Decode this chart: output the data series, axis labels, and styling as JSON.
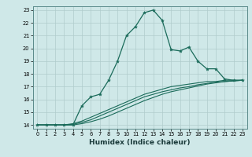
{
  "xlabel": "Humidex (Indice chaleur)",
  "ylabel": "",
  "bg_color": "#cfe8e8",
  "grid_color": "#b0cccc",
  "line_color": "#1a6b5a",
  "xlim": [
    -0.5,
    23.5
  ],
  "ylim": [
    13.7,
    23.3
  ],
  "xticks": [
    0,
    1,
    2,
    3,
    4,
    5,
    6,
    7,
    8,
    9,
    10,
    11,
    12,
    13,
    14,
    15,
    16,
    17,
    18,
    19,
    20,
    21,
    22,
    23
  ],
  "yticks": [
    14,
    15,
    16,
    17,
    18,
    19,
    20,
    21,
    22,
    23
  ],
  "series1_x": [
    0,
    1,
    2,
    3,
    4,
    5,
    6,
    7,
    8,
    9,
    10,
    11,
    12,
    13,
    14,
    15,
    16,
    17,
    18,
    19,
    20,
    21,
    22,
    23
  ],
  "series1_y": [
    14.0,
    14.0,
    14.0,
    14.0,
    14.0,
    15.5,
    16.2,
    16.4,
    17.5,
    19.0,
    21.0,
    21.7,
    22.8,
    23.0,
    22.2,
    19.9,
    19.8,
    20.1,
    19.0,
    18.4,
    18.4,
    17.6,
    17.5,
    17.5
  ],
  "series2_x": [
    0,
    1,
    2,
    3,
    4,
    5,
    6,
    7,
    8,
    9,
    10,
    11,
    12,
    13,
    14,
    15,
    16,
    17,
    18,
    19,
    20,
    21,
    22,
    23
  ],
  "series2_y": [
    14.0,
    14.0,
    14.0,
    14.0,
    14.1,
    14.3,
    14.6,
    14.9,
    15.2,
    15.5,
    15.8,
    16.1,
    16.4,
    16.6,
    16.8,
    17.0,
    17.1,
    17.2,
    17.3,
    17.4,
    17.4,
    17.5,
    17.5,
    17.5
  ],
  "series3_x": [
    0,
    1,
    2,
    3,
    4,
    5,
    6,
    7,
    8,
    9,
    10,
    11,
    12,
    13,
    14,
    15,
    16,
    17,
    18,
    19,
    20,
    21,
    22,
    23
  ],
  "series3_y": [
    14.0,
    14.0,
    14.0,
    14.0,
    14.05,
    14.2,
    14.4,
    14.7,
    15.0,
    15.3,
    15.6,
    15.9,
    16.2,
    16.4,
    16.6,
    16.75,
    16.9,
    17.0,
    17.15,
    17.25,
    17.35,
    17.4,
    17.45,
    17.5
  ],
  "series4_x": [
    0,
    1,
    2,
    3,
    4,
    5,
    6,
    7,
    8,
    9,
    10,
    11,
    12,
    13,
    14,
    15,
    16,
    17,
    18,
    19,
    20,
    21,
    22,
    23
  ],
  "series4_y": [
    14.0,
    14.0,
    14.0,
    14.0,
    14.0,
    14.1,
    14.25,
    14.45,
    14.7,
    15.0,
    15.3,
    15.6,
    15.9,
    16.15,
    16.4,
    16.6,
    16.75,
    16.9,
    17.05,
    17.2,
    17.3,
    17.4,
    17.45,
    17.5
  ],
  "xlabel_fontsize": 6.5,
  "tick_fontsize": 4.8,
  "lw": 0.9,
  "marker_size": 3.0
}
